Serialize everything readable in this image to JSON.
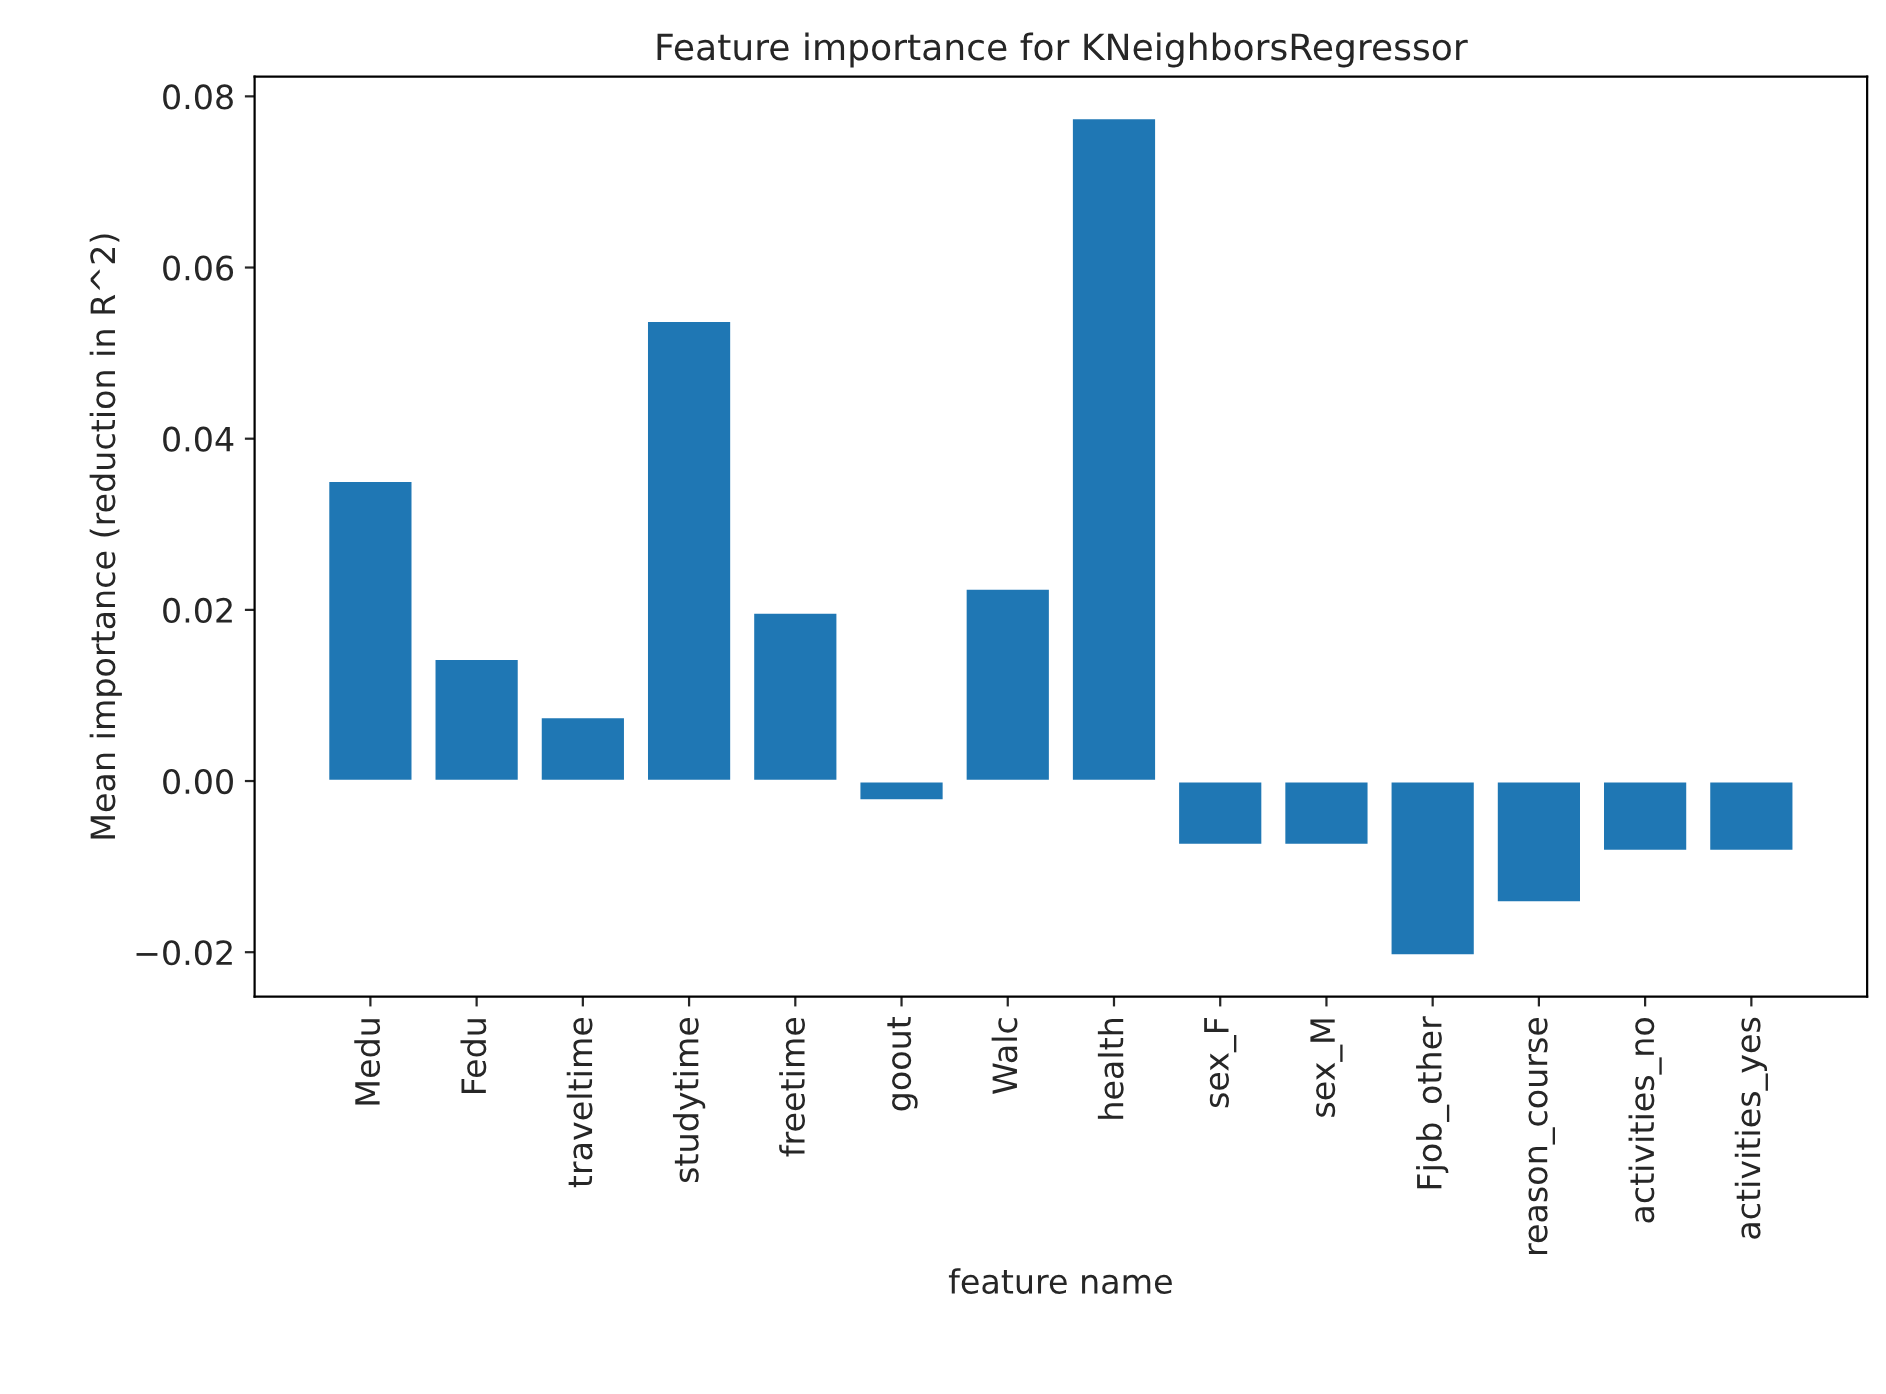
{
  "chart_data": {
    "type": "bar",
    "title": "Feature importance for KNeighborsRegressor",
    "xlabel": "feature name",
    "ylabel": "Mean importance (reduction in R^2)",
    "categories": [
      "Medu",
      "Fedu",
      "traveltime",
      "studytime",
      "freetime",
      "goout",
      "Walc",
      "health",
      "sex_F",
      "sex_M",
      "Fjob_other",
      "reason_course",
      "activities_no",
      "activities_yes"
    ],
    "values": [
      0.0351,
      0.0143,
      0.0075,
      0.0538,
      0.0197,
      -0.0023,
      0.0225,
      0.0775,
      -0.0075,
      -0.0075,
      -0.0204,
      -0.0142,
      -0.0082,
      -0.0082
    ],
    "color": "#1f77b4",
    "ylim": [
      -0.0252,
      0.0823
    ],
    "yticks": [
      {
        "value": -0.02,
        "label": "−0.02"
      },
      "0.00",
      0.02,
      0.04,
      0.06,
      0.08
    ],
    "grid": false
  }
}
